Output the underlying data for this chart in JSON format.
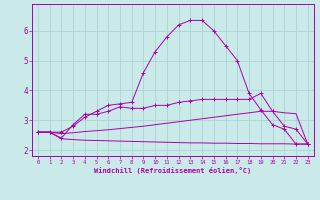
{
  "xlabel": "Windchill (Refroidissement éolien,°C)",
  "background_color": "#caeaea",
  "grid_color": "#aad4d4",
  "line_color": "#aa00aa",
  "x_ticks": [
    0,
    1,
    2,
    3,
    4,
    5,
    6,
    7,
    8,
    9,
    10,
    11,
    12,
    13,
    14,
    15,
    16,
    17,
    18,
    19,
    20,
    21,
    22,
    23
  ],
  "y_ticks": [
    2,
    3,
    4,
    5,
    6
  ],
  "xlim": [
    -0.5,
    23.5
  ],
  "ylim": [
    1.8,
    6.9
  ],
  "series": [
    {
      "x": [
        0,
        1,
        2,
        3,
        4,
        5,
        6,
        7,
        8,
        9,
        10,
        11,
        12,
        13,
        14,
        15,
        16,
        17,
        18,
        19,
        20,
        21,
        22,
        23
      ],
      "y": [
        2.6,
        2.6,
        2.4,
        2.85,
        3.2,
        3.2,
        3.3,
        3.45,
        3.4,
        3.4,
        3.5,
        3.5,
        3.6,
        3.65,
        3.7,
        3.7,
        3.7,
        3.7,
        3.7,
        3.9,
        3.3,
        2.8,
        2.7,
        2.2
      ],
      "marker": "+"
    },
    {
      "x": [
        0,
        1,
        2,
        3,
        4,
        5,
        6,
        7,
        8,
        9,
        10,
        11,
        12,
        13,
        14,
        15,
        16,
        17,
        18,
        19,
        20,
        21,
        22,
        23
      ],
      "y": [
        2.6,
        2.6,
        2.55,
        2.58,
        2.62,
        2.65,
        2.68,
        2.72,
        2.76,
        2.8,
        2.85,
        2.9,
        2.95,
        3.0,
        3.05,
        3.1,
        3.15,
        3.2,
        3.25,
        3.3,
        3.3,
        3.25,
        3.22,
        2.2
      ],
      "marker": null
    },
    {
      "x": [
        0,
        1,
        2,
        3,
        4,
        5,
        6,
        7,
        8,
        9,
        10,
        11,
        12,
        13,
        14,
        15,
        16,
        17,
        18,
        19,
        20,
        21,
        22,
        23
      ],
      "y": [
        2.6,
        2.6,
        2.38,
        2.35,
        2.33,
        2.32,
        2.31,
        2.3,
        2.29,
        2.28,
        2.27,
        2.26,
        2.25,
        2.24,
        2.24,
        2.23,
        2.23,
        2.22,
        2.22,
        2.21,
        2.21,
        2.21,
        2.2,
        2.2
      ],
      "marker": null
    },
    {
      "x": [
        0,
        1,
        2,
        3,
        4,
        5,
        6,
        7,
        8,
        9,
        10,
        11,
        12,
        13,
        14,
        15,
        16,
        17,
        18,
        19,
        20,
        21,
        22,
        23
      ],
      "y": [
        2.6,
        2.6,
        2.6,
        2.8,
        3.1,
        3.3,
        3.5,
        3.55,
        3.6,
        4.6,
        5.3,
        5.8,
        6.2,
        6.35,
        6.35,
        6.0,
        5.5,
        5.0,
        3.9,
        3.35,
        2.85,
        2.7,
        2.2,
        2.2
      ],
      "marker": "+"
    }
  ]
}
